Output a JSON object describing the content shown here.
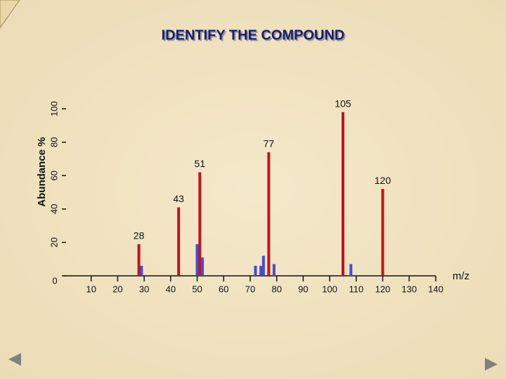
{
  "chart_data": {
    "type": "bar",
    "title": "IDENTIFY THE COMPOUND",
    "y_label": "Abundance %",
    "x_label": "m/z",
    "series": [
      {
        "color": "#c0141c",
        "x": [
          28,
          43,
          51,
          77,
          105,
          120
        ],
        "values": [
          19,
          41,
          62,
          74,
          98,
          52
        ]
      },
      {
        "color": "#4a4ad0",
        "x": [
          29,
          50,
          52,
          72,
          74,
          75,
          79,
          108
        ],
        "values": [
          6,
          19,
          11,
          6,
          6,
          12,
          7,
          7
        ]
      }
    ],
    "xlim": [
      0,
      140
    ],
    "xticks": [
      10,
      20,
      30,
      40,
      50,
      60,
      70,
      80,
      90,
      100,
      110,
      120,
      130,
      140
    ],
    "ylim": [
      0,
      100
    ],
    "yticks": [
      0,
      20,
      40,
      60,
      80,
      100
    ]
  }
}
